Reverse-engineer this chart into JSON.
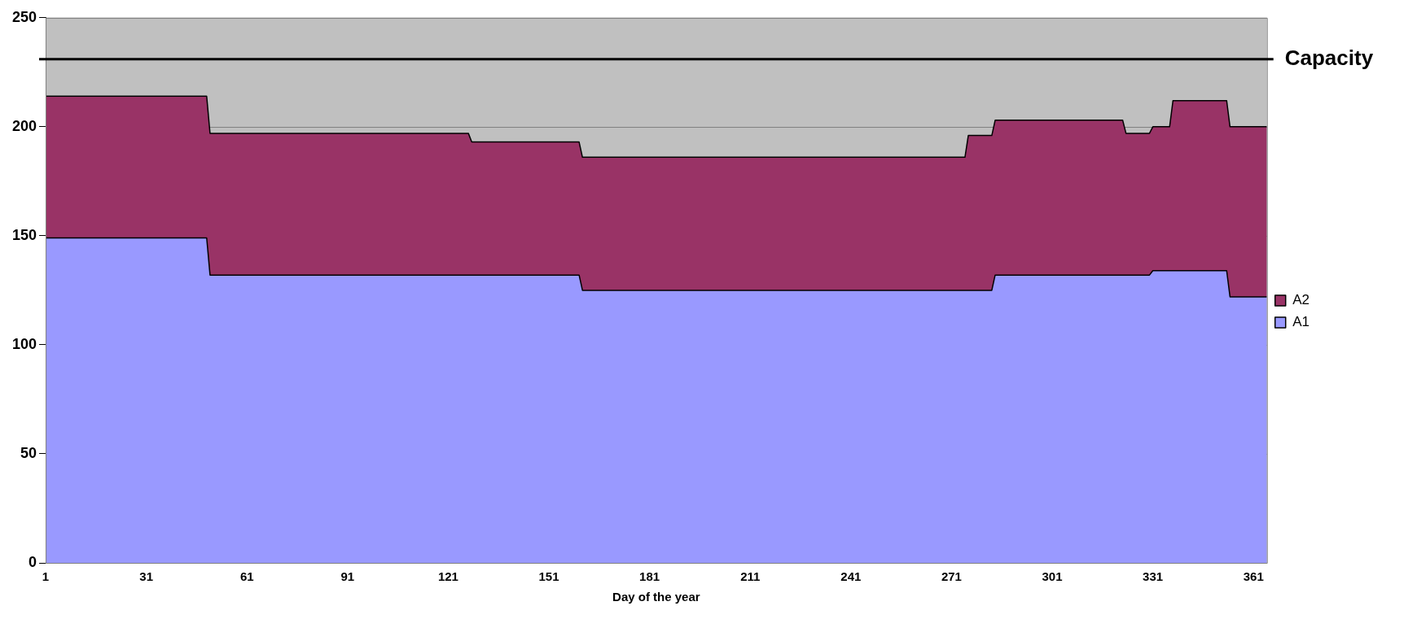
{
  "chart_data": {
    "type": "area",
    "stacked": true,
    "xlabel": "Day of the year",
    "x": [
      1,
      49,
      50,
      127,
      128,
      160,
      161,
      275,
      276,
      283,
      284,
      322,
      323,
      330,
      331,
      336,
      337,
      353,
      354,
      365
    ],
    "series": [
      {
        "name": "A1",
        "color": "#9999ff",
        "values": [
          149,
          149,
          132,
          132,
          132,
          132,
          125,
          125,
          125,
          125,
          132,
          132,
          132,
          132,
          134,
          134,
          134,
          134,
          122,
          122
        ]
      },
      {
        "name": "A2",
        "color": "#993366",
        "values": [
          65,
          65,
          65,
          65,
          61,
          61,
          61,
          61,
          71,
          71,
          71,
          71,
          65,
          65,
          66,
          66,
          78,
          78,
          78,
          78
        ]
      }
    ],
    "xlim": [
      1,
      365
    ],
    "xticks": [
      1,
      31,
      61,
      91,
      121,
      151,
      181,
      211,
      241,
      271,
      301,
      331,
      361
    ],
    "ylim": [
      0,
      250
    ],
    "yticks": [
      0,
      50,
      100,
      150,
      200,
      250
    ],
    "grid": "y",
    "legend": "right",
    "ref_lines": [
      {
        "axis": "y",
        "value": 231,
        "label": "Capacity",
        "color": "#000000"
      }
    ]
  }
}
